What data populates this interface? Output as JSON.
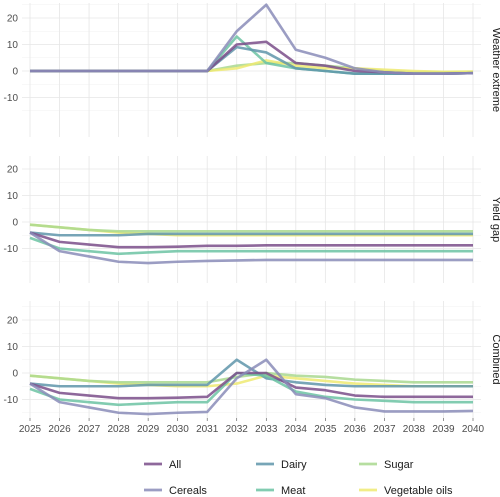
{
  "chart_data": {
    "type": "line",
    "x": [
      2025,
      2026,
      2027,
      2028,
      2029,
      2030,
      2031,
      2032,
      2033,
      2034,
      2035,
      2036,
      2037,
      2038,
      2039,
      2040
    ],
    "x_ticks": [
      "2025",
      "2026",
      "2027",
      "2028",
      "2029",
      "2030",
      "2031",
      "2032",
      "2033",
      "2034",
      "2035",
      "2036",
      "2037",
      "2038",
      "2039",
      "2040"
    ],
    "y_ticks": [
      20,
      10,
      0,
      -10
    ],
    "ylim": [
      -15,
      26
    ],
    "grid": true,
    "legend_placement": "bottom",
    "series_styles": [
      {
        "name": "All",
        "color": "#7a4e8a"
      },
      {
        "name": "Cereals",
        "color": "#8a8cb8"
      },
      {
        "name": "Dairy",
        "color": "#5f95aa"
      },
      {
        "name": "Meat",
        "color": "#6cc3a3"
      },
      {
        "name": "Sugar",
        "color": "#a9d88f"
      },
      {
        "name": "Vegetable oils",
        "color": "#eeea72"
      }
    ],
    "legend_rows": [
      [
        "All",
        "Dairy",
        "Sugar"
      ],
      [
        "Cereals",
        "Meat",
        "Vegetable oils"
      ]
    ],
    "panels": [
      {
        "strip": "Weather extreme",
        "series": [
          {
            "name": "Sugar",
            "values": [
              0,
              0,
              0,
              0,
              0,
              0,
              0,
              2,
              3,
              3,
              2,
              1,
              0,
              -0.5,
              -0.5,
              -0.3
            ]
          },
          {
            "name": "Vegetable oils",
            "values": [
              0,
              0,
              0,
              0,
              0,
              0,
              0,
              1,
              4,
              2,
              1,
              1,
              0.5,
              0,
              -0.3,
              -0.2
            ]
          },
          {
            "name": "Meat",
            "values": [
              0,
              0,
              0,
              0,
              0,
              0,
              0,
              13,
              3,
              1,
              0,
              -1,
              -1,
              -1,
              -1,
              -0.8
            ]
          },
          {
            "name": "Dairy",
            "values": [
              0,
              0,
              0,
              0,
              0,
              0,
              0,
              9,
              7,
              1,
              0,
              -1,
              -1,
              -1,
              -1,
              -0.8
            ]
          },
          {
            "name": "All",
            "values": [
              0,
              0,
              0,
              0,
              0,
              0,
              0,
              10,
              11,
              3,
              2,
              0,
              -0.5,
              -1,
              -1,
              -0.8
            ]
          },
          {
            "name": "Cereals",
            "values": [
              0,
              0,
              0,
              0,
              0,
              0,
              0,
              15,
              25,
              8,
              5,
              1,
              -0.5,
              -1,
              -1,
              -0.8
            ]
          }
        ]
      },
      {
        "strip": "Yield gap",
        "series": [
          {
            "name": "Vegetable oils",
            "values": [
              -1,
              -2,
              -3,
              -4,
              -4.5,
              -5,
              -5,
              -5,
              -5,
              -5,
              -5,
              -5,
              -5,
              -5,
              -5,
              -5
            ]
          },
          {
            "name": "Sugar",
            "values": [
              -1,
              -2,
              -3,
              -3.5,
              -3.5,
              -3.5,
              -3.5,
              -3.5,
              -3.5,
              -3.5,
              -3.5,
              -3.5,
              -3.5,
              -3.5,
              -3.5,
              -3.5
            ]
          },
          {
            "name": "Dairy",
            "values": [
              -4,
              -5,
              -5,
              -5,
              -4.5,
              -4.5,
              -4.5,
              -4.5,
              -4.5,
              -4.5,
              -4.5,
              -4.5,
              -4.5,
              -4.5,
              -4.5,
              -4.5
            ]
          },
          {
            "name": "Meat",
            "values": [
              -6,
              -10,
              -11,
              -12,
              -11.5,
              -11,
              -11,
              -11,
              -11,
              -11,
              -11,
              -11,
              -11,
              -11,
              -11,
              -11
            ]
          },
          {
            "name": "All",
            "values": [
              -4,
              -7.5,
              -8.5,
              -9.5,
              -9.5,
              -9.3,
              -9,
              -9,
              -8.8,
              -8.8,
              -8.8,
              -8.8,
              -8.8,
              -8.8,
              -8.8,
              -8.8
            ]
          },
          {
            "name": "Cereals",
            "values": [
              -4,
              -11,
              -13,
              -15,
              -15.5,
              -15,
              -14.7,
              -14.5,
              -14.3,
              -14.3,
              -14.3,
              -14.3,
              -14.3,
              -14.3,
              -14.3,
              -14.3
            ]
          }
        ]
      },
      {
        "strip": "Combined",
        "series": [
          {
            "name": "Vegetable oils",
            "values": [
              -1,
              -2,
              -3,
              -4,
              -4.5,
              -5,
              -5,
              -4,
              -1,
              -2,
              -3,
              -4,
              -4.5,
              -5,
              -5,
              -5
            ]
          },
          {
            "name": "Sugar",
            "values": [
              -1,
              -2,
              -3,
              -3.5,
              -3.5,
              -3.5,
              -3.5,
              -1.5,
              0,
              -1,
              -1.5,
              -2.5,
              -3,
              -3.5,
              -3.5,
              -3.5
            ]
          },
          {
            "name": "Dairy",
            "values": [
              -4,
              -5,
              -5,
              -5,
              -4.5,
              -4.5,
              -4.5,
              5,
              -2,
              -3.5,
              -4.5,
              -5,
              -5,
              -5,
              -5,
              -5
            ]
          },
          {
            "name": "Meat",
            "values": [
              -6,
              -10,
              -11,
              -12,
              -11.5,
              -11,
              -11,
              0,
              -1,
              -7,
              -9,
              -10,
              -10.5,
              -11,
              -11,
              -11
            ]
          },
          {
            "name": "All",
            "values": [
              -4,
              -7.5,
              -8.5,
              -9.5,
              -9.5,
              -9.3,
              -9,
              0,
              0,
              -5.5,
              -6.5,
              -8.5,
              -9,
              -9,
              -9,
              -9
            ]
          },
          {
            "name": "Cereals",
            "values": [
              -4,
              -11,
              -13,
              -15,
              -15.5,
              -15,
              -14.7,
              -2,
              5,
              -8,
              -9.5,
              -13,
              -14.5,
              -14.5,
              -14.5,
              -14.3
            ]
          }
        ]
      }
    ]
  }
}
